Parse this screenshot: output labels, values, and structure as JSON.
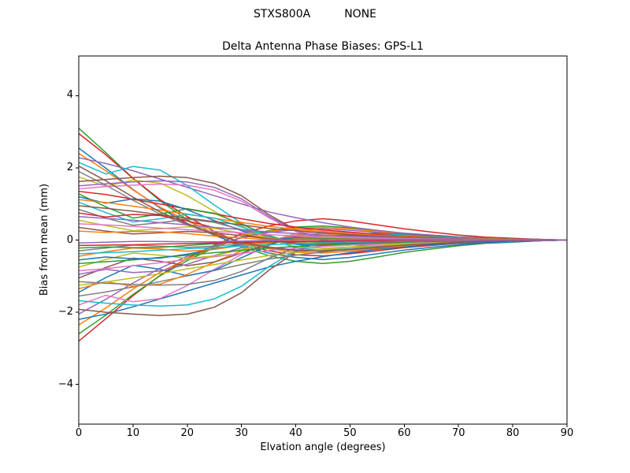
{
  "figure": {
    "suptitle_left": "STXS800A",
    "suptitle_right": "NONE",
    "title": "Delta Antenna Phase Biases: GPS-L1",
    "xlabel": "Elvation angle (degrees)",
    "ylabel": "Bias from mean (mm)"
  },
  "chart_data": {
    "type": "line",
    "title": "Delta Antenna Phase Biases: GPS-L1",
    "suptitle": "STXS800A        NONE",
    "xlabel": "Elvation angle (degrees)",
    "ylabel": "Bias from mean (mm)",
    "xlim": [
      0,
      90
    ],
    "ylim": [
      -5.1,
      5.1
    ],
    "xticks": [
      0,
      10,
      20,
      30,
      40,
      50,
      60,
      70,
      80,
      90
    ],
    "yticks": [
      -4,
      -2,
      0,
      2,
      4
    ],
    "grid": false,
    "legend": "none",
    "line_width": 1.5,
    "x": [
      0,
      5,
      10,
      15,
      20,
      25,
      30,
      35,
      40,
      45,
      50,
      55,
      60,
      65,
      70,
      75,
      80,
      85,
      90
    ],
    "series": [
      {
        "color": "#2ca02c",
        "y": [
          3.1,
          2.42,
          1.71,
          1.09,
          0.56,
          0.16,
          -0.19,
          -0.43,
          -0.59,
          -0.65,
          -0.59,
          -0.47,
          -0.34,
          -0.25,
          -0.16,
          -0.09,
          -0.06,
          -0.02,
          0.0
        ]
      },
      {
        "color": "#d62728",
        "y": [
          -2.8,
          -2.18,
          -1.54,
          -0.98,
          -0.5,
          -0.14,
          0.17,
          0.39,
          0.53,
          0.59,
          0.53,
          0.42,
          0.31,
          0.22,
          0.14,
          0.08,
          0.05,
          0.02,
          0.0
        ]
      },
      {
        "color": "#d62728",
        "y": [
          2.95,
          2.36,
          1.71,
          1.12,
          0.65,
          0.24,
          -0.09,
          -0.3,
          -0.41,
          -0.44,
          -0.38,
          -0.3,
          -0.21,
          -0.15,
          -0.09,
          -0.06,
          -0.04,
          -0.02,
          0.0
        ]
      },
      {
        "color": "#2ca02c",
        "y": [
          -2.6,
          -2.08,
          -1.51,
          -0.99,
          -0.57,
          -0.21,
          0.08,
          0.26,
          0.36,
          0.39,
          0.34,
          0.26,
          0.18,
          0.13,
          0.08,
          0.05,
          0.03,
          0.02,
          0.0
        ]
      },
      {
        "color": "#1f77b4",
        "y": [
          2.55,
          1.99,
          1.4,
          0.89,
          0.46,
          0.13,
          -0.15,
          -0.36,
          -0.48,
          -0.54,
          -0.48,
          -0.38,
          -0.28,
          -0.2,
          -0.13,
          -0.08,
          -0.05,
          -0.02,
          0.0
        ]
      },
      {
        "color": "#ff7f0e",
        "y": [
          -2.35,
          -1.88,
          -1.36,
          -0.89,
          -0.52,
          -0.19,
          0.07,
          0.24,
          0.33,
          0.35,
          0.31,
          0.24,
          0.16,
          0.12,
          0.07,
          0.05,
          0.03,
          0.01,
          0.0
        ]
      },
      {
        "color": "#ff7f0e",
        "y": [
          2.4,
          1.92,
          1.39,
          0.91,
          0.53,
          0.19,
          -0.07,
          -0.24,
          -0.34,
          -0.36,
          -0.31,
          -0.24,
          -0.17,
          -0.12,
          -0.07,
          -0.05,
          -0.03,
          -0.01,
          0.0
        ]
      },
      {
        "color": "#1f77b4",
        "y": [
          -2.2,
          -2.05,
          -1.85,
          -1.63,
          -1.41,
          -1.19,
          -0.97,
          -0.75,
          -0.59,
          -0.46,
          -0.35,
          -0.26,
          -0.19,
          -0.13,
          -0.09,
          -0.06,
          -0.03,
          -0.02,
          0.0
        ]
      },
      {
        "color": "#9467bd",
        "y": [
          2.28,
          2.12,
          1.92,
          1.69,
          1.46,
          1.23,
          1.0,
          0.78,
          0.62,
          0.48,
          0.36,
          0.27,
          0.19,
          0.14,
          0.09,
          0.06,
          0.03,
          0.02,
          0.0
        ]
      },
      {
        "color": "#9467bd",
        "y": [
          -2.05,
          -1.64,
          -1.19,
          -0.78,
          -0.45,
          -0.16,
          0.06,
          0.21,
          0.29,
          0.31,
          0.27,
          0.21,
          0.14,
          0.1,
          0.06,
          0.04,
          0.02,
          0.01,
          0.0
        ]
      },
      {
        "color": "#17becf",
        "y": [
          2.15,
          1.83,
          2.04,
          1.94,
          1.51,
          0.97,
          0.47,
          0.04,
          -0.22,
          -0.28,
          -0.24,
          -0.17,
          -0.11,
          -0.08,
          -0.05,
          -0.03,
          -0.02,
          -0.01,
          0.0
        ]
      },
      {
        "color": "#8c564b",
        "y": [
          -1.92,
          -2.0,
          -2.05,
          -2.09,
          -2.05,
          -1.86,
          -1.46,
          -0.84,
          -0.33,
          0.0,
          0.15,
          0.19,
          0.16,
          0.12,
          0.08,
          0.05,
          0.03,
          0.01,
          0.0
        ]
      },
      {
        "color": "#7f7f7f",
        "y": [
          1.9,
          1.52,
          1.1,
          0.72,
          0.42,
          0.15,
          -0.06,
          -0.19,
          -0.27,
          -0.29,
          -0.25,
          -0.19,
          -0.13,
          -0.1,
          -0.06,
          -0.04,
          -0.02,
          -0.01,
          0.0
        ]
      },
      {
        "color": "#e377c2",
        "y": [
          -1.8,
          -1.53,
          -1.71,
          -1.62,
          -1.26,
          -0.81,
          -0.4,
          -0.04,
          0.18,
          0.23,
          0.2,
          0.14,
          0.09,
          0.06,
          0.04,
          0.02,
          0.01,
          0.01,
          0.0
        ]
      },
      {
        "color": "#bcbd22",
        "y": [
          1.75,
          1.49,
          1.66,
          1.58,
          1.23,
          0.79,
          0.39,
          0.04,
          -0.18,
          -0.23,
          -0.19,
          -0.14,
          -0.09,
          -0.06,
          -0.04,
          -0.02,
          -0.01,
          -0.01,
          0.0
        ]
      },
      {
        "color": "#17becf",
        "y": [
          -1.68,
          -1.75,
          -1.8,
          -1.83,
          -1.8,
          -1.63,
          -1.28,
          -0.74,
          -0.29,
          0.0,
          0.13,
          0.17,
          0.14,
          0.1,
          0.07,
          0.04,
          0.02,
          0.01,
          0.0
        ]
      },
      {
        "color": "#8c564b",
        "y": [
          1.62,
          1.68,
          1.73,
          1.77,
          1.73,
          1.57,
          1.23,
          0.71,
          0.28,
          0.0,
          -0.13,
          -0.16,
          -0.14,
          -0.1,
          -0.06,
          -0.04,
          -0.02,
          -0.01,
          0.0
        ]
      },
      {
        "color": "#7f7f7f",
        "y": [
          -1.55,
          -1.44,
          -1.3,
          -1.15,
          -0.99,
          -0.84,
          -0.68,
          -0.53,
          -0.42,
          -0.33,
          -0.25,
          -0.19,
          -0.13,
          -0.09,
          -0.06,
          -0.04,
          -0.02,
          -0.01,
          0.0
        ]
      },
      {
        "color": "#9467bd",
        "y": [
          1.5,
          1.56,
          1.61,
          1.64,
          1.61,
          1.46,
          1.14,
          0.66,
          0.26,
          0.0,
          -0.12,
          -0.15,
          -0.13,
          -0.09,
          -0.06,
          -0.04,
          -0.02,
          -0.01,
          0.0
        ]
      },
      {
        "color": "#1f77b4",
        "y": [
          -1.45,
          -1.04,
          -0.7,
          -0.81,
          -0.99,
          -0.84,
          -0.49,
          -0.15,
          0.12,
          0.19,
          0.16,
          0.12,
          0.08,
          0.06,
          0.04,
          0.02,
          0.01,
          0.01,
          0.0
        ]
      },
      {
        "color": "#e377c2",
        "y": [
          1.42,
          1.48,
          1.52,
          1.55,
          1.52,
          1.38,
          1.08,
          0.62,
          0.24,
          0.0,
          -0.11,
          -0.14,
          -0.12,
          -0.09,
          -0.06,
          -0.04,
          -0.02,
          -0.01,
          0.0
        ]
      },
      {
        "color": "#ff7f0e",
        "y": [
          -1.35,
          -1.15,
          -1.28,
          -1.22,
          -0.95,
          -0.61,
          -0.3,
          -0.03,
          0.14,
          0.18,
          0.15,
          0.11,
          0.07,
          0.05,
          0.03,
          0.02,
          0.01,
          0.0,
          0.0
        ]
      },
      {
        "color": "#d62728",
        "y": [
          1.35,
          1.26,
          1.13,
          1.0,
          0.86,
          0.73,
          0.59,
          0.46,
          0.36,
          0.28,
          0.22,
          0.16,
          0.11,
          0.08,
          0.05,
          0.03,
          0.02,
          0.01,
          0.0
        ]
      },
      {
        "color": "#bcbd22",
        "y": [
          -1.25,
          -1.16,
          -1.05,
          -0.93,
          -0.8,
          -0.68,
          -0.55,
          -0.43,
          -0.34,
          -0.26,
          -0.2,
          -0.15,
          -0.11,
          -0.08,
          -0.05,
          -0.03,
          -0.02,
          -0.01,
          0.0
        ]
      },
      {
        "color": "#2ca02c",
        "y": [
          1.28,
          0.92,
          0.61,
          0.72,
          0.87,
          0.74,
          0.44,
          0.13,
          -0.1,
          -0.17,
          -0.14,
          -0.1,
          -0.07,
          -0.05,
          -0.03,
          -0.02,
          -0.01,
          -0.01,
          0.0
        ]
      },
      {
        "color": "#7f7f7f",
        "y": [
          -1.15,
          -1.2,
          -1.23,
          -1.25,
          -1.23,
          -1.12,
          -0.87,
          -0.51,
          -0.2,
          0.0,
          0.09,
          0.12,
          0.1,
          0.07,
          0.05,
          0.03,
          0.02,
          0.01,
          0.0
        ]
      },
      {
        "color": "#1f77b4",
        "y": [
          1.2,
          1.02,
          1.14,
          1.08,
          0.84,
          0.54,
          0.26,
          0.02,
          -0.12,
          -0.16,
          -0.13,
          -0.1,
          -0.06,
          -0.04,
          -0.03,
          -0.02,
          -0.01,
          0.0,
          0.0
        ]
      },
      {
        "color": "#8c564b",
        "y": [
          -1.05,
          -0.76,
          -0.5,
          -0.59,
          -0.71,
          -0.61,
          -0.36,
          -0.11,
          0.08,
          0.14,
          0.12,
          0.08,
          0.06,
          0.04,
          0.03,
          0.02,
          0.01,
          0.0,
          0.0
        ]
      },
      {
        "color": "#ff7f0e",
        "y": [
          1.12,
          1.04,
          0.94,
          0.83,
          0.72,
          0.6,
          0.49,
          0.38,
          0.3,
          0.24,
          0.18,
          0.13,
          0.1,
          0.07,
          0.04,
          0.03,
          0.02,
          0.01,
          0.0
        ]
      },
      {
        "color": "#9467bd",
        "y": [
          -0.95,
          -0.81,
          -0.9,
          -0.86,
          -0.67,
          -0.43,
          -0.21,
          -0.02,
          0.1,
          0.12,
          0.1,
          0.08,
          0.05,
          0.03,
          0.02,
          0.01,
          0.01,
          0.0,
          0.0
        ]
      },
      {
        "color": "#17becf",
        "y": [
          1.05,
          0.76,
          0.5,
          0.59,
          0.71,
          0.61,
          0.36,
          0.11,
          -0.08,
          -0.14,
          -0.12,
          -0.08,
          -0.06,
          -0.04,
          -0.03,
          -0.02,
          -0.01,
          0.0,
          0.0
        ]
      },
      {
        "color": "#e377c2",
        "y": [
          -0.85,
          -0.79,
          -0.71,
          -0.63,
          -0.54,
          -0.46,
          -0.37,
          -0.29,
          -0.23,
          -0.18,
          -0.14,
          -0.1,
          -0.07,
          -0.05,
          -0.03,
          -0.02,
          -0.01,
          -0.01,
          0.0
        ]
      },
      {
        "color": "#8c564b",
        "y": [
          0.95,
          0.88,
          0.8,
          0.7,
          0.61,
          0.51,
          0.42,
          0.32,
          0.26,
          0.2,
          0.15,
          0.11,
          0.08,
          0.06,
          0.04,
          0.02,
          0.01,
          0.01,
          0.0
        ]
      },
      {
        "color": "#bcbd22",
        "y": [
          -0.75,
          -0.54,
          -0.36,
          -0.42,
          -0.51,
          -0.44,
          -0.26,
          -0.08,
          0.06,
          0.1,
          0.08,
          0.06,
          0.04,
          0.03,
          0.02,
          0.01,
          0.01,
          0.0,
          0.0
        ]
      },
      {
        "color": "#7f7f7f",
        "y": [
          0.85,
          0.61,
          0.41,
          0.48,
          0.58,
          0.49,
          0.29,
          0.09,
          -0.07,
          -0.11,
          -0.09,
          -0.07,
          -0.05,
          -0.03,
          -0.02,
          -0.01,
          -0.01,
          0.0,
          0.0
        ]
      },
      {
        "color": "#2ca02c",
        "y": [
          -0.65,
          -0.6,
          -0.55,
          -0.48,
          -0.42,
          -0.35,
          -0.29,
          -0.22,
          -0.18,
          -0.14,
          -0.1,
          -0.08,
          -0.06,
          -0.04,
          -0.03,
          -0.02,
          -0.01,
          0.0,
          0.0
        ]
      },
      {
        "color": "#d62728",
        "y": [
          0.75,
          0.64,
          0.71,
          0.68,
          0.53,
          0.34,
          0.17,
          0.02,
          -0.08,
          -0.1,
          -0.08,
          -0.06,
          -0.04,
          -0.03,
          -0.02,
          -0.01,
          -0.01,
          0.0,
          0.0
        ]
      },
      {
        "color": "#1f77b4",
        "y": [
          -0.55,
          -0.47,
          -0.52,
          -0.5,
          -0.39,
          -0.25,
          -0.12,
          -0.01,
          0.06,
          0.07,
          0.06,
          0.04,
          0.03,
          0.02,
          0.01,
          0.01,
          0.0,
          0.0,
          0.0
        ]
      },
      {
        "color": "#9467bd",
        "y": [
          0.65,
          0.6,
          0.55,
          0.48,
          0.42,
          0.35,
          0.29,
          0.22,
          0.18,
          0.14,
          0.1,
          0.08,
          0.06,
          0.04,
          0.03,
          0.02,
          0.01,
          0.0,
          0.0
        ]
      },
      {
        "color": "#ff7f0e",
        "y": [
          -0.45,
          -0.32,
          -0.22,
          -0.25,
          -0.31,
          -0.26,
          -0.15,
          -0.05,
          0.04,
          0.06,
          0.05,
          0.04,
          0.02,
          0.02,
          0.01,
          0.01,
          0.0,
          0.0,
          0.0
        ]
      },
      {
        "color": "#bcbd22",
        "y": [
          0.55,
          0.4,
          0.26,
          0.31,
          0.37,
          0.32,
          0.19,
          0.06,
          -0.04,
          -0.07,
          -0.06,
          -0.04,
          -0.03,
          -0.02,
          -0.01,
          -0.01,
          0.0,
          0.0,
          0.0
        ]
      },
      {
        "color": "#17becf",
        "y": [
          -0.38,
          -0.35,
          -0.32,
          -0.28,
          -0.24,
          -0.21,
          -0.17,
          -0.13,
          -0.1,
          -0.08,
          -0.06,
          -0.05,
          -0.03,
          -0.02,
          -0.02,
          -0.01,
          -0.01,
          0.0,
          0.0
        ]
      },
      {
        "color": "#e377c2",
        "y": [
          0.45,
          0.42,
          0.38,
          0.33,
          0.29,
          0.24,
          0.2,
          0.15,
          0.12,
          0.09,
          0.07,
          0.05,
          0.04,
          0.03,
          0.02,
          0.01,
          0.01,
          0.0,
          0.0
        ]
      },
      {
        "color": "#7f7f7f",
        "y": [
          -0.3,
          -0.22,
          -0.14,
          -0.17,
          -0.2,
          -0.17,
          -0.1,
          -0.03,
          0.02,
          0.04,
          0.03,
          0.02,
          0.02,
          0.01,
          0.01,
          0.0,
          0.0,
          0.0,
          0.0
        ]
      },
      {
        "color": "#8c564b",
        "y": [
          0.35,
          0.25,
          0.17,
          0.2,
          0.24,
          0.2,
          0.12,
          0.04,
          -0.03,
          -0.05,
          -0.04,
          -0.03,
          -0.02,
          -0.01,
          -0.01,
          -0.01,
          0.0,
          0.0,
          0.0
        ]
      },
      {
        "color": "#2ca02c",
        "y": [
          -0.22,
          -0.19,
          -0.21,
          -0.2,
          -0.15,
          -0.1,
          -0.05,
          0.0,
          0.02,
          0.03,
          0.02,
          0.02,
          0.01,
          0.01,
          0.0,
          0.0,
          0.0,
          0.0,
          0.0
        ]
      },
      {
        "color": "#ff7f0e",
        "y": [
          0.25,
          0.21,
          0.24,
          0.23,
          0.18,
          0.11,
          0.06,
          0.01,
          -0.03,
          -0.03,
          -0.03,
          -0.02,
          -0.01,
          -0.01,
          -0.01,
          0.0,
          0.0,
          0.0,
          0.0
        ]
      },
      {
        "color": "#d62728",
        "y": [
          -0.15,
          -0.14,
          -0.13,
          -0.11,
          -0.1,
          -0.08,
          -0.07,
          -0.05,
          -0.04,
          -0.03,
          -0.02,
          -0.02,
          -0.01,
          -0.01,
          0.0,
          0.0,
          0.0,
          0.0,
          0.0
        ]
      },
      {
        "color": "#8c564b",
        "y": [
          2.05,
          1.64,
          1.19,
          0.78,
          0.45,
          0.16,
          -0.06,
          -0.21,
          -0.29,
          -0.31,
          -0.27,
          -0.21,
          -0.14,
          -0.1,
          -0.06,
          -0.04,
          -0.02,
          -0.01,
          0.0
        ]
      },
      {
        "color": "#9467bd",
        "y": [
          -0.08,
          -0.06,
          -0.04,
          -0.04,
          -0.05,
          -0.05,
          -0.03,
          -0.01,
          0.01,
          0.01,
          0.01,
          0.01,
          0.0,
          0.0,
          0.0,
          0.0,
          0.0,
          0.0,
          0.0
        ]
      }
    ]
  }
}
